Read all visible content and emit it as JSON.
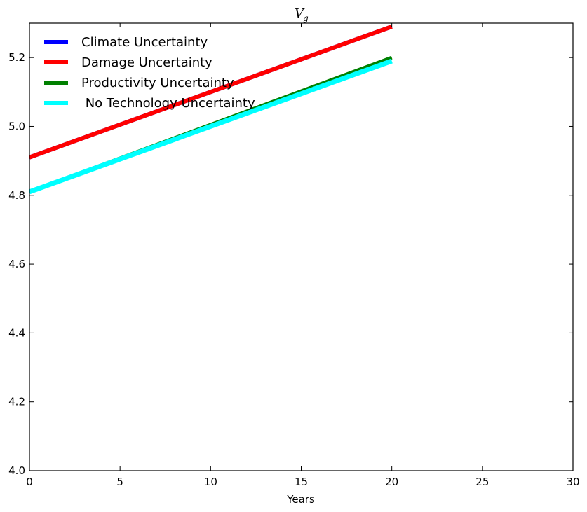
{
  "chart_data": {
    "type": "line",
    "title": "V",
    "title_subscript": "g",
    "xlabel": "Years",
    "ylabel": "",
    "xlim": [
      0,
      30
    ],
    "ylim": [
      4.0,
      5.3
    ],
    "xticks": [
      0,
      5,
      10,
      15,
      20,
      25,
      30
    ],
    "xtick_labels": [
      "0",
      "5",
      "10",
      "15",
      "20",
      "25",
      "30"
    ],
    "yticks": [
      4.0,
      4.2,
      4.4,
      4.6,
      4.8,
      5.0,
      5.2
    ],
    "ytick_labels": [
      "4.0",
      "4.2",
      "4.4",
      "4.6",
      "4.8",
      "5.0",
      "5.2"
    ],
    "grid": false,
    "legend_position": "top-left",
    "series": [
      {
        "name": "Climate Uncertainty",
        "color": "#0000ff",
        "x": [
          0,
          20
        ],
        "y": [
          4.91,
          5.29
        ]
      },
      {
        "name": "Damage Uncertainty",
        "color": "#ff0000",
        "x": [
          0,
          20
        ],
        "y": [
          4.91,
          5.29
        ]
      },
      {
        "name": "Productivity Uncertainty",
        "color": "#008000",
        "x": [
          0,
          20
        ],
        "y": [
          4.81,
          5.2
        ]
      },
      {
        "name": " No Technology Uncertainty",
        "color": "#00ffff",
        "x": [
          0,
          20
        ],
        "y": [
          4.81,
          5.19
        ]
      }
    ]
  }
}
